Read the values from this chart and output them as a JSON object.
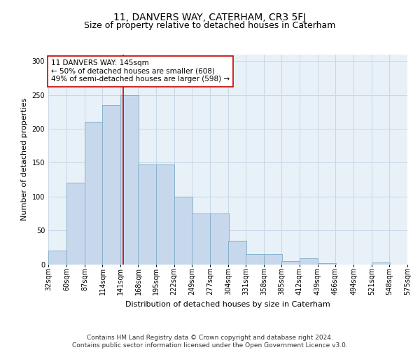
{
  "title1": "11, DANVERS WAY, CATERHAM, CR3 5FJ",
  "title2": "Size of property relative to detached houses in Caterham",
  "xlabel": "Distribution of detached houses by size in Caterham",
  "ylabel": "Number of detached properties",
  "bin_labels": [
    "32sqm",
    "60sqm",
    "87sqm",
    "114sqm",
    "141sqm",
    "168sqm",
    "195sqm",
    "222sqm",
    "249sqm",
    "277sqm",
    "304sqm",
    "331sqm",
    "358sqm",
    "385sqm",
    "412sqm",
    "439sqm",
    "466sqm",
    "494sqm",
    "521sqm",
    "548sqm",
    "575sqm"
  ],
  "bin_edges": [
    32,
    60,
    87,
    114,
    141,
    168,
    195,
    222,
    249,
    277,
    304,
    331,
    358,
    385,
    412,
    439,
    466,
    494,
    521,
    548,
    575
  ],
  "bar_heights": [
    20,
    120,
    210,
    235,
    250,
    147,
    147,
    100,
    75,
    75,
    35,
    15,
    15,
    5,
    9,
    2,
    0,
    0,
    3,
    0
  ],
  "bar_color": "#c8d8ec",
  "bar_edge_color": "#7aaac8",
  "vline_x": 145,
  "vline_color": "#cc0000",
  "annotation_text": "11 DANVERS WAY: 145sqm\n← 50% of detached houses are smaller (608)\n49% of semi-detached houses are larger (598) →",
  "annotation_box_color": "white",
  "annotation_box_edge": "#cc0000",
  "ylim": [
    0,
    310
  ],
  "grid_color": "#c8d8e8",
  "background_color": "#e8f0f8",
  "footer_text": "Contains HM Land Registry data © Crown copyright and database right 2024.\nContains public sector information licensed under the Open Government Licence v3.0.",
  "title1_fontsize": 10,
  "title2_fontsize": 9,
  "xlabel_fontsize": 8,
  "ylabel_fontsize": 8,
  "tick_fontsize": 7,
  "annotation_fontsize": 7.5,
  "footer_fontsize": 6.5
}
